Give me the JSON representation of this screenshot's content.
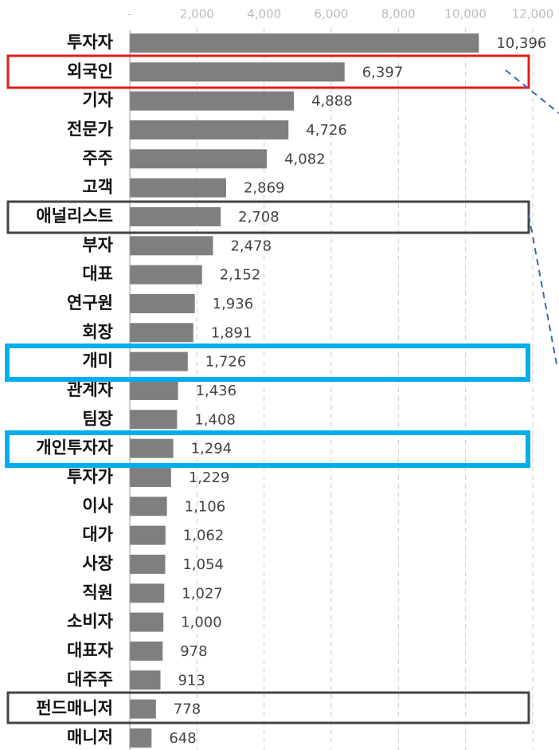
{
  "chart_data": {
    "type": "bar",
    "orientation": "horizontal",
    "categories": [
      "투자자",
      "외국인",
      "기자",
      "전문가",
      "주주",
      "고객",
      "애널리스트",
      "부자",
      "대표",
      "연구원",
      "회장",
      "개미",
      "관계자",
      "팀장",
      "개인투자자",
      "투자가",
      "이사",
      "대가",
      "사장",
      "직원",
      "소비자",
      "대표자",
      "대주주",
      "펀드매니저",
      "매니저"
    ],
    "values": [
      10396,
      6397,
      4888,
      4726,
      4082,
      2869,
      2708,
      2478,
      2152,
      1936,
      1891,
      1726,
      1436,
      1408,
      1294,
      1229,
      1106,
      1062,
      1054,
      1027,
      1000,
      978,
      913,
      778,
      648
    ],
    "value_labels": [
      "10,396",
      "6,397",
      "4,888",
      "4,726",
      "4,082",
      "2,869",
      "2,708",
      "2,478",
      "2,152",
      "1,936",
      "1,891",
      "1,726",
      "1,436",
      "1,408",
      "1,294",
      "1,229",
      "1,106",
      "1,062",
      "1,054",
      "1,027",
      "1,000",
      "978",
      "913",
      "778",
      "648"
    ],
    "color": "#7f7f7f",
    "xlim": [
      0,
      12000
    ],
    "xticks": [
      {
        "value": 0,
        "label": "-"
      },
      {
        "value": 2000,
        "label": "2,000"
      },
      {
        "value": 4000,
        "label": "4,000"
      },
      {
        "value": 6000,
        "label": "6,000"
      },
      {
        "value": 8000,
        "label": "8,000"
      },
      {
        "value": 10000,
        "label": "10,000"
      },
      {
        "value": 12000,
        "label": "12,000"
      }
    ],
    "grid": true
  }
}
